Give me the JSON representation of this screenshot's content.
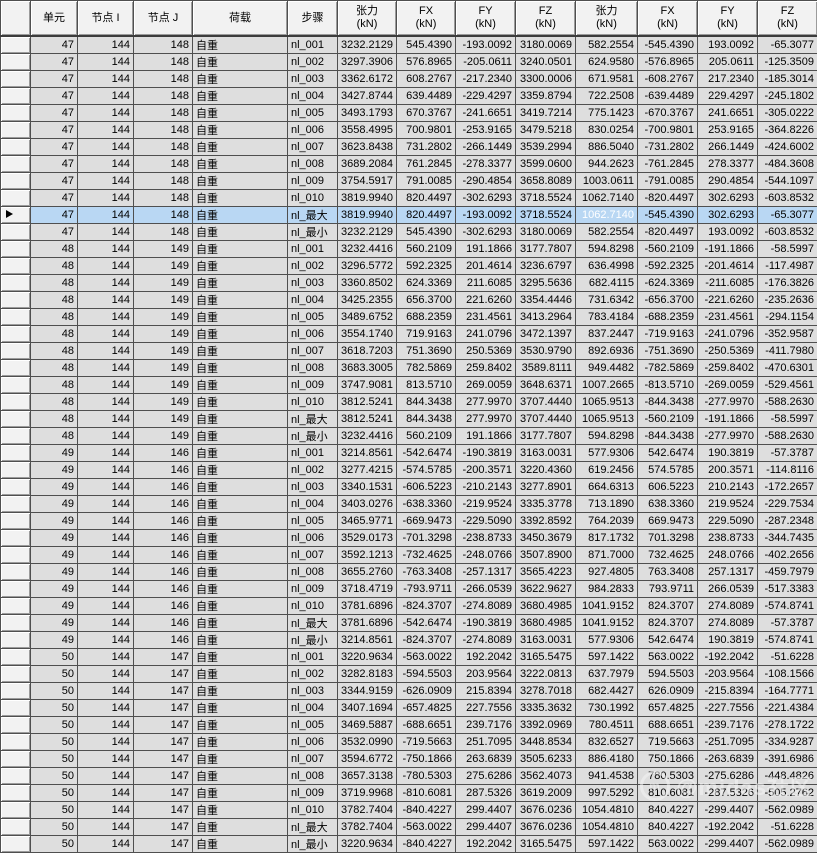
{
  "table": {
    "columns": [
      {
        "name": "selector",
        "label": "",
        "sub": "",
        "align": "center"
      },
      {
        "name": "element",
        "label": "单元",
        "sub": "",
        "align": "right"
      },
      {
        "name": "node-i",
        "label": "节点 I",
        "sub": "",
        "align": "right"
      },
      {
        "name": "node-j",
        "label": "节点 J",
        "sub": "",
        "align": "right"
      },
      {
        "name": "load",
        "label": "荷载",
        "sub": "",
        "align": "left"
      },
      {
        "name": "step",
        "label": "步骤",
        "sub": "",
        "align": "left"
      },
      {
        "name": "tension-i",
        "label": "张力",
        "sub": "(kN)",
        "align": "right"
      },
      {
        "name": "fx-i",
        "label": "FX",
        "sub": "(kN)",
        "align": "right"
      },
      {
        "name": "fy-i",
        "label": "FY",
        "sub": "(kN)",
        "align": "right"
      },
      {
        "name": "fz-i",
        "label": "FZ",
        "sub": "(kN)",
        "align": "right"
      },
      {
        "name": "tension-j",
        "label": "张力",
        "sub": "(kN)",
        "align": "right"
      },
      {
        "name": "fx-j",
        "label": "FX",
        "sub": "(kN)",
        "align": "right"
      },
      {
        "name": "fy-j",
        "label": "FY",
        "sub": "(kN)",
        "align": "right"
      },
      {
        "name": "fz-j",
        "label": "FZ",
        "sub": "(kN)",
        "align": "right"
      }
    ],
    "rows": [
      [
        "47",
        "144",
        "148",
        "自重",
        "nl_001",
        "3232.2129",
        "545.4390",
        "-193.0092",
        "3180.0069",
        "582.2554",
        "-545.4390",
        "193.0092",
        "-65.3077"
      ],
      [
        "47",
        "144",
        "148",
        "自重",
        "nl_002",
        "3297.3906",
        "576.8965",
        "-205.0611",
        "3240.0501",
        "624.9580",
        "-576.8965",
        "205.0611",
        "-125.3509"
      ],
      [
        "47",
        "144",
        "148",
        "自重",
        "nl_003",
        "3362.6172",
        "608.2767",
        "-217.2340",
        "3300.0006",
        "671.9581",
        "-608.2767",
        "217.2340",
        "-185.3014"
      ],
      [
        "47",
        "144",
        "148",
        "自重",
        "nl_004",
        "3427.8744",
        "639.4489",
        "-229.4297",
        "3359.8794",
        "722.2508",
        "-639.4489",
        "229.4297",
        "-245.1802"
      ],
      [
        "47",
        "144",
        "148",
        "自重",
        "nl_005",
        "3493.1793",
        "670.3767",
        "-241.6651",
        "3419.7214",
        "775.1423",
        "-670.3767",
        "241.6651",
        "-305.0222"
      ],
      [
        "47",
        "144",
        "148",
        "自重",
        "nl_006",
        "3558.4995",
        "700.9801",
        "-253.9165",
        "3479.5218",
        "830.0254",
        "-700.9801",
        "253.9165",
        "-364.8226"
      ],
      [
        "47",
        "144",
        "148",
        "自重",
        "nl_007",
        "3623.8438",
        "731.2802",
        "-266.1449",
        "3539.2994",
        "886.5040",
        "-731.2802",
        "266.1449",
        "-424.6002"
      ],
      [
        "47",
        "144",
        "148",
        "自重",
        "nl_008",
        "3689.2084",
        "761.2845",
        "-278.3377",
        "3599.0600",
        "944.2623",
        "-761.2845",
        "278.3377",
        "-484.3608"
      ],
      [
        "47",
        "144",
        "148",
        "自重",
        "nl_009",
        "3754.5917",
        "791.0085",
        "-290.4854",
        "3658.8089",
        "1003.0611",
        "-791.0085",
        "290.4854",
        "-544.1097"
      ],
      [
        "47",
        "144",
        "148",
        "自重",
        "nl_010",
        "3819.9940",
        "820.4497",
        "-302.6293",
        "3718.5524",
        "1062.7140",
        "-820.4497",
        "302.6293",
        "-603.8532"
      ],
      [
        "47",
        "144",
        "148",
        "自重",
        "nl_最大",
        "3819.9940",
        "820.4497",
        "-193.0092",
        "3718.5524",
        "1062.7140",
        "-545.4390",
        "302.6293",
        "-65.3077"
      ],
      [
        "47",
        "144",
        "148",
        "自重",
        "nl_最小",
        "3232.2129",
        "545.4390",
        "-302.6293",
        "3180.0069",
        "582.2554",
        "-820.4497",
        "193.0092",
        "-603.8532"
      ],
      [
        "48",
        "144",
        "149",
        "自重",
        "nl_001",
        "3232.4416",
        "560.2109",
        "191.1866",
        "3177.7807",
        "594.8298",
        "-560.2109",
        "-191.1866",
        "-58.5997"
      ],
      [
        "48",
        "144",
        "149",
        "自重",
        "nl_002",
        "3296.5772",
        "592.2325",
        "201.4614",
        "3236.6797",
        "636.4998",
        "-592.2325",
        "-201.4614",
        "-117.4987"
      ],
      [
        "48",
        "144",
        "149",
        "自重",
        "nl_003",
        "3360.8502",
        "624.3369",
        "211.6085",
        "3295.5636",
        "682.4115",
        "-624.3369",
        "-211.6085",
        "-176.3826"
      ],
      [
        "48",
        "144",
        "149",
        "自重",
        "nl_004",
        "3425.2355",
        "656.3700",
        "221.6260",
        "3354.4446",
        "731.6342",
        "-656.3700",
        "-221.6260",
        "-235.2636"
      ],
      [
        "48",
        "144",
        "149",
        "自重",
        "nl_005",
        "3489.6752",
        "688.2359",
        "231.4561",
        "3413.2964",
        "783.4184",
        "-688.2359",
        "-231.4561",
        "-294.1154"
      ],
      [
        "48",
        "144",
        "149",
        "自重",
        "nl_006",
        "3554.1740",
        "719.9163",
        "241.0796",
        "3472.1397",
        "837.2447",
        "-719.9163",
        "-241.0796",
        "-352.9587"
      ],
      [
        "48",
        "144",
        "149",
        "自重",
        "nl_007",
        "3618.7203",
        "751.3690",
        "250.5369",
        "3530.9790",
        "892.6936",
        "-751.3690",
        "-250.5369",
        "-411.7980"
      ],
      [
        "48",
        "144",
        "149",
        "自重",
        "nl_008",
        "3683.3005",
        "782.5869",
        "259.8402",
        "3589.8111",
        "949.4482",
        "-782.5869",
        "-259.8402",
        "-470.6301"
      ],
      [
        "48",
        "144",
        "149",
        "自重",
        "nl_009",
        "3747.9081",
        "813.5710",
        "269.0059",
        "3648.6371",
        "1007.2665",
        "-813.5710",
        "-269.0059",
        "-529.4561"
      ],
      [
        "48",
        "144",
        "149",
        "自重",
        "nl_010",
        "3812.5241",
        "844.3438",
        "277.9970",
        "3707.4440",
        "1065.9513",
        "-844.3438",
        "-277.9970",
        "-588.2630"
      ],
      [
        "48",
        "144",
        "149",
        "自重",
        "nl_最大",
        "3812.5241",
        "844.3438",
        "277.9970",
        "3707.4440",
        "1065.9513",
        "-560.2109",
        "-191.1866",
        "-58.5997"
      ],
      [
        "48",
        "144",
        "149",
        "自重",
        "nl_最小",
        "3232.4416",
        "560.2109",
        "191.1866",
        "3177.7807",
        "594.8298",
        "-844.3438",
        "-277.9970",
        "-588.2630"
      ],
      [
        "49",
        "144",
        "146",
        "自重",
        "nl_001",
        "3214.8561",
        "-542.6474",
        "-190.3819",
        "3163.0031",
        "577.9306",
        "542.6474",
        "190.3819",
        "-57.3787"
      ],
      [
        "49",
        "144",
        "146",
        "自重",
        "nl_002",
        "3277.4215",
        "-574.5785",
        "-200.3571",
        "3220.4360",
        "619.2456",
        "574.5785",
        "200.3571",
        "-114.8116"
      ],
      [
        "49",
        "144",
        "146",
        "自重",
        "nl_003",
        "3340.1531",
        "-606.5223",
        "-210.2143",
        "3277.8901",
        "664.6313",
        "606.5223",
        "210.2143",
        "-172.2657"
      ],
      [
        "49",
        "144",
        "146",
        "自重",
        "nl_004",
        "3403.0276",
        "-638.3360",
        "-219.9524",
        "3335.3778",
        "713.1890",
        "638.3360",
        "219.9524",
        "-229.7534"
      ],
      [
        "49",
        "144",
        "146",
        "自重",
        "nl_005",
        "3465.9771",
        "-669.9473",
        "-229.5090",
        "3392.8592",
        "764.2039",
        "669.9473",
        "229.5090",
        "-287.2348"
      ],
      [
        "49",
        "144",
        "146",
        "自重",
        "nl_006",
        "3529.0173",
        "-701.3298",
        "-238.8733",
        "3450.3679",
        "817.1732",
        "701.3298",
        "238.8733",
        "-344.7435"
      ],
      [
        "49",
        "144",
        "146",
        "自重",
        "nl_007",
        "3592.1213",
        "-732.4625",
        "-248.0766",
        "3507.8900",
        "871.7000",
        "732.4625",
        "248.0766",
        "-402.2656"
      ],
      [
        "49",
        "144",
        "146",
        "自重",
        "nl_008",
        "3655.2760",
        "-763.3408",
        "-257.1317",
        "3565.4223",
        "927.4805",
        "763.3408",
        "257.1317",
        "-459.7979"
      ],
      [
        "49",
        "144",
        "146",
        "自重",
        "nl_009",
        "3718.4719",
        "-793.9711",
        "-266.0539",
        "3622.9627",
        "984.2833",
        "793.9711",
        "266.0539",
        "-517.3383"
      ],
      [
        "49",
        "144",
        "146",
        "自重",
        "nl_010",
        "3781.6896",
        "-824.3707",
        "-274.8089",
        "3680.4985",
        "1041.9152",
        "824.3707",
        "274.8089",
        "-574.8741"
      ],
      [
        "49",
        "144",
        "146",
        "自重",
        "nl_最大",
        "3781.6896",
        "-542.6474",
        "-190.3819",
        "3680.4985",
        "1041.9152",
        "824.3707",
        "274.8089",
        "-57.3787"
      ],
      [
        "49",
        "144",
        "146",
        "自重",
        "nl_最小",
        "3214.8561",
        "-824.3707",
        "-274.8089",
        "3163.0031",
        "577.9306",
        "542.6474",
        "190.3819",
        "-574.8741"
      ],
      [
        "50",
        "144",
        "147",
        "自重",
        "nl_001",
        "3220.9634",
        "-563.0022",
        "192.2042",
        "3165.5475",
        "597.1422",
        "563.0022",
        "-192.2042",
        "-51.6228"
      ],
      [
        "50",
        "144",
        "147",
        "自重",
        "nl_002",
        "3282.8183",
        "-594.5503",
        "203.9564",
        "3222.0813",
        "637.7979",
        "594.5503",
        "-203.9564",
        "-108.1566"
      ],
      [
        "50",
        "144",
        "147",
        "自重",
        "nl_003",
        "3344.9159",
        "-626.0909",
        "215.8394",
        "3278.7018",
        "682.4427",
        "626.0909",
        "-215.8394",
        "-164.7771"
      ],
      [
        "50",
        "144",
        "147",
        "自重",
        "nl_004",
        "3407.1694",
        "-657.4825",
        "227.7556",
        "3335.3632",
        "730.1992",
        "657.4825",
        "-227.7556",
        "-221.4384"
      ],
      [
        "50",
        "144",
        "147",
        "自重",
        "nl_005",
        "3469.5887",
        "-688.6651",
        "239.7176",
        "3392.0969",
        "780.4511",
        "688.6651",
        "-239.7176",
        "-278.1722"
      ],
      [
        "50",
        "144",
        "147",
        "自重",
        "nl_006",
        "3532.0990",
        "-719.5663",
        "251.7095",
        "3448.8534",
        "832.6527",
        "719.5663",
        "-251.7095",
        "-334.9287"
      ],
      [
        "50",
        "144",
        "147",
        "自重",
        "nl_007",
        "3594.6772",
        "-750.1866",
        "263.6839",
        "3505.6233",
        "886.4180",
        "750.1866",
        "-263.6839",
        "-391.6986"
      ],
      [
        "50",
        "144",
        "147",
        "自重",
        "nl_008",
        "3657.3138",
        "-780.5303",
        "275.6286",
        "3562.4073",
        "941.4538",
        "780.5303",
        "-275.6286",
        "-448.4826"
      ],
      [
        "50",
        "144",
        "147",
        "自重",
        "nl_009",
        "3719.9968",
        "-810.6081",
        "287.5326",
        "3619.2009",
        "997.5292",
        "810.6081",
        "-287.5326",
        "-505.2762"
      ],
      [
        "50",
        "144",
        "147",
        "自重",
        "nl_010",
        "3782.7404",
        "-840.4227",
        "299.4407",
        "3676.0236",
        "1054.4810",
        "840.4227",
        "-299.4407",
        "-562.0989"
      ],
      [
        "50",
        "144",
        "147",
        "自重",
        "nl_最大",
        "3782.7404",
        "-563.0022",
        "299.4407",
        "3676.0236",
        "1054.4810",
        "840.4227",
        "-192.2042",
        "-51.6228"
      ],
      [
        "50",
        "144",
        "147",
        "自重",
        "nl_最小",
        "3220.9634",
        "-840.4227",
        "192.2042",
        "3165.5475",
        "597.1422",
        "563.0022",
        "-299.4407",
        "-562.0989"
      ]
    ],
    "selection": {
      "row_index": 10,
      "col_index": 9,
      "selected_value": "1062.7140"
    },
    "colors": {
      "cell_bg": "#dedede",
      "header_bg": "#f2f2f2",
      "grid_line": "#4f4f4f",
      "current_row_bg": "#b9d7f3",
      "selected_cell_bg": "#424242",
      "selected_cell_text": "#ffffff"
    }
  },
  "watermark": {
    "text": "@midas社区"
  }
}
